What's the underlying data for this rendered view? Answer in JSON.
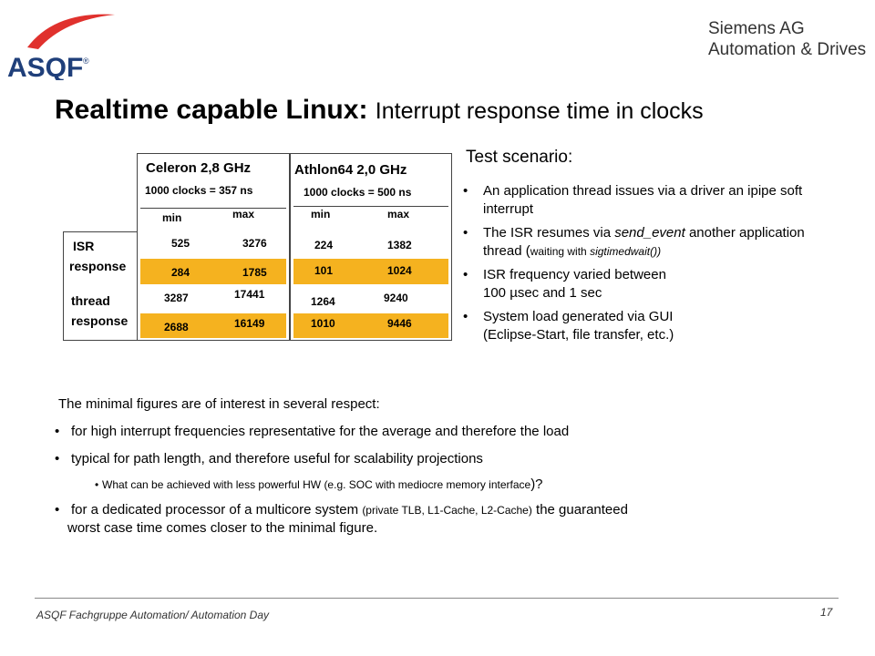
{
  "logo": {
    "text": "ASQF",
    "reg": "®",
    "swoosh_color": "#e0312d",
    "text_color": "#1f3f7a"
  },
  "company": {
    "line1": "Siemens AG",
    "line2": "Automation & Drives"
  },
  "title": {
    "main": "Realtime capable Linux:",
    "sub": "Interrupt response time in clocks"
  },
  "table": {
    "celeron": {
      "name": "Celeron 2,8 GHz",
      "clocks": "1000 clocks = 357 ns",
      "min": "min",
      "max": "max"
    },
    "athlon": {
      "name": "Athlon64  2,0 GHz",
      "clocks": "1000 clocks = 500 ns",
      "min": "min",
      "max": "max"
    },
    "isr": {
      "label1": "ISR",
      "label2": "response",
      "celeron": {
        "min": "525",
        "max": "3276",
        "min2": "284",
        "max2": "1785"
      },
      "athlon": {
        "min": "224",
        "max": "1382",
        "min2": "101",
        "max2": "1024"
      }
    },
    "thread": {
      "label1": "thread",
      "label2": "response",
      "celeron": {
        "min": "3287",
        "max": "17441",
        "min2": "2688",
        "max2": "16149"
      },
      "athlon": {
        "min": "1264",
        "max": "9240",
        "min2": "1010",
        "max2": "9446"
      }
    },
    "highlight_color": "#f5b21f"
  },
  "scenario": {
    "title": "Test scenario:",
    "b1": {
      "a": "An application thread issues via a driver  an ipipe soft interrupt"
    },
    "b2": {
      "a": "The ISR resumes via ",
      "b": "send_event",
      "c": " another application thread (",
      "d": "waiting with ",
      "e": "sigtimedwait())"
    },
    "b3": {
      "a": "ISR frequency varied between",
      "b": "100 µsec and 1 sec"
    },
    "b4": {
      "a": "System load generated via GUI",
      "b": "(Eclipse-Start, file transfer, etc.)"
    }
  },
  "lower": {
    "intro": "The minimal figures are of interest in several respect:",
    "b1": "for high interrupt frequencies representative for the average and therefore the load",
    "b2": "typical for path length, and therefore useful for scalability projections",
    "sub": {
      "a": "What can be achieved with less powerful  HW (e.g. SOC with mediocre memory interface",
      "b": ")?"
    },
    "b3": {
      "a": "for a dedicated processor of a multicore system ",
      "b": "(private TLB, L1-Cache, L2-Cache)",
      "c": " the guaranteed",
      "d": "worst  case time comes closer to the minimal figure."
    }
  },
  "footer": {
    "text": "ASQF Fachgruppe Automation/ Automation Day",
    "page": "17"
  }
}
